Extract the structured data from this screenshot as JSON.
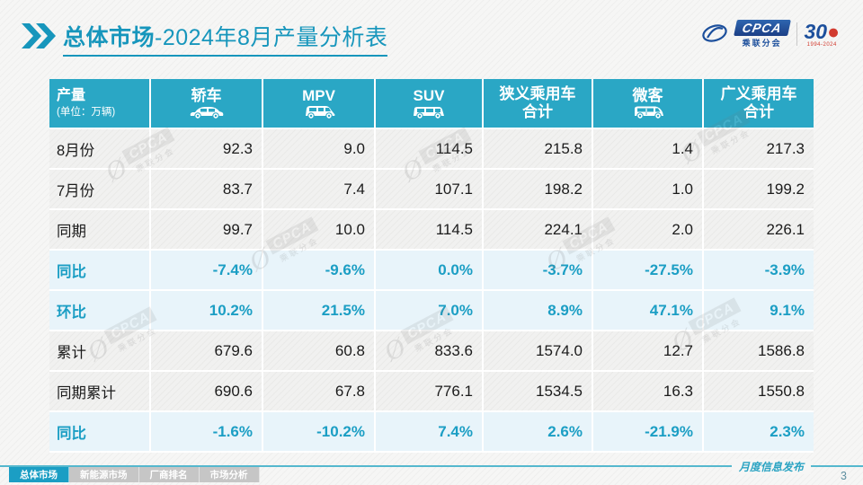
{
  "title": {
    "highlight": "总体市场",
    "rest": "-2024年8月产量分析表"
  },
  "logos": {
    "cpca_acronym": "CPCA",
    "cpca_name": "乘联分会",
    "anniversary_number": "30",
    "anniversary_years": "1994-2024"
  },
  "watermark": {
    "line1": "CPCA",
    "line2": "乘联分会"
  },
  "table": {
    "corner": {
      "title": "产量",
      "unit": "(单位：万辆)"
    },
    "columns": [
      {
        "label": "轿车",
        "icon": "sedan-icon"
      },
      {
        "label": "MPV",
        "icon": "mpv-icon"
      },
      {
        "label": "SUV",
        "icon": "suv-icon"
      },
      {
        "label": "狭义乘用车",
        "sublabel": "合计"
      },
      {
        "label": "微客",
        "icon": "microvan-icon"
      },
      {
        "label": "广义乘用车",
        "sublabel": "合计"
      }
    ],
    "rows": [
      {
        "label": "8月份",
        "type": "normal",
        "values": [
          "92.3",
          "9.0",
          "114.5",
          "215.8",
          "1.4",
          "217.3"
        ]
      },
      {
        "label": "7月份",
        "type": "normal",
        "values": [
          "83.7",
          "7.4",
          "107.1",
          "198.2",
          "1.0",
          "199.2"
        ]
      },
      {
        "label": "同期",
        "type": "normal",
        "values": [
          "99.7",
          "10.0",
          "114.5",
          "224.1",
          "2.0",
          "226.1"
        ]
      },
      {
        "label": "同比",
        "type": "highlight",
        "values": [
          "-7.4%",
          "-9.6%",
          "0.0%",
          "-3.7%",
          "-27.5%",
          "-3.9%"
        ]
      },
      {
        "label": "环比",
        "type": "highlight",
        "values": [
          "10.2%",
          "21.5%",
          "7.0%",
          "8.9%",
          "47.1%",
          "9.1%"
        ]
      },
      {
        "label": "累计",
        "type": "normal",
        "values": [
          "679.6",
          "60.8",
          "833.6",
          "1574.0",
          "12.7",
          "1586.8"
        ]
      },
      {
        "label": "同期累计",
        "type": "normal",
        "values": [
          "690.6",
          "67.8",
          "776.1",
          "1534.5",
          "16.3",
          "1550.8"
        ]
      },
      {
        "label": "同比",
        "type": "highlight",
        "values": [
          "-1.6%",
          "-10.2%",
          "7.4%",
          "2.6%",
          "-21.9%",
          "2.3%"
        ]
      }
    ]
  },
  "footer": {
    "tabs": [
      {
        "label": "总体市场",
        "active": true
      },
      {
        "label": "新能源市场",
        "active": false
      },
      {
        "label": "厂商排名",
        "active": false
      },
      {
        "label": "市场分析",
        "active": false
      }
    ],
    "note": "月度信息发布",
    "page_number": "3"
  },
  "colors": {
    "accent": "#1796bc",
    "header_bg": "#2aa7c5",
    "highlight_row_bg": "#e8f4fa",
    "highlight_text": "#1b9ec4",
    "row_bg": "#f1f1f0",
    "inactive_tab_bg": "#c6c6c6",
    "footer_rule": "#55b8ce"
  }
}
